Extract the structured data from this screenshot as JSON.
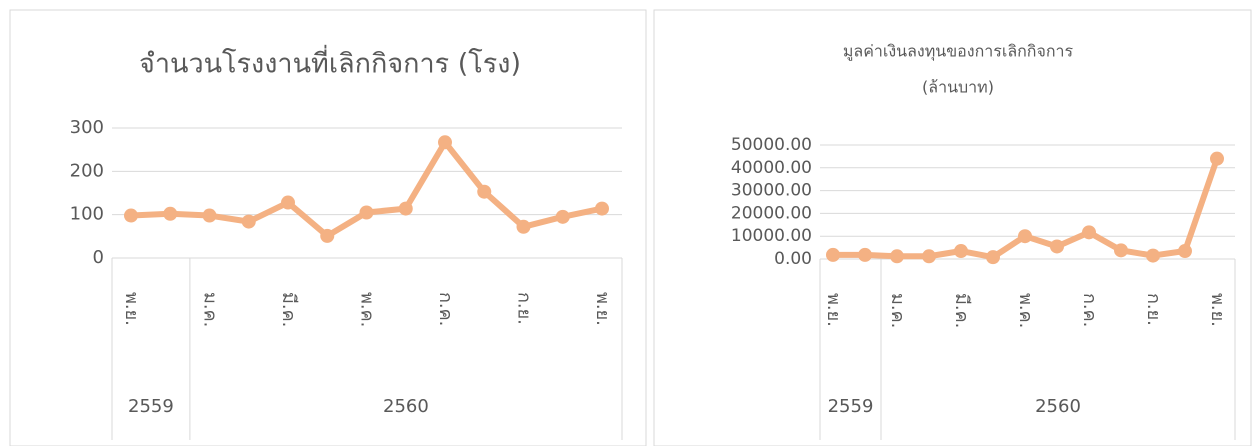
{
  "chart_data": [
    {
      "type": "line",
      "title": [
        "จำนวนโรงงานที่เลิกกิจการ (โรง)"
      ],
      "categories": [
        "พ.ย.",
        null,
        "ม.ค.",
        null,
        "มี.ค.",
        null,
        "พ.ค.",
        null,
        "ก.ค.",
        null,
        "ก.ย.",
        null,
        "พ.ย."
      ],
      "groups": [
        {
          "label": "2559",
          "count": 2
        },
        {
          "label": "2560",
          "count": 11
        }
      ],
      "series": [
        {
          "color": "#f4b183",
          "values": [
            98,
            102,
            98,
            84,
            128,
            51,
            105,
            114,
            267,
            153,
            72,
            95,
            114
          ]
        }
      ],
      "ylim": [
        0,
        300
      ],
      "yticks": [
        0,
        100,
        200,
        300
      ],
      "grid": true
    },
    {
      "type": "line",
      "title": [
        "มูลค่าเงินลงทุนของการเลิกกิจการ",
        "(ล้านบาท)"
      ],
      "categories": [
        "พ.ย.",
        null,
        "ม.ค.",
        null,
        "มี.ค.",
        null,
        "พ.ค.",
        null,
        "ก.ค.",
        null,
        "ก.ย.",
        null,
        "พ.ย."
      ],
      "groups": [
        {
          "label": "2559",
          "count": 2
        },
        {
          "label": "2560",
          "count": 11
        }
      ],
      "series": [
        {
          "color": "#f4b183",
          "values": [
            1800,
            1800,
            1200,
            1200,
            3500,
            800,
            10000,
            5500,
            11700,
            3800,
            1500,
            3500,
            44000
          ]
        }
      ],
      "ylim": [
        0,
        50000
      ],
      "yticks": [
        {
          "value": 0,
          "label": "0.00"
        },
        {
          "value": 10000,
          "label": "10000.00"
        },
        {
          "value": 20000,
          "label": "20000.00"
        },
        {
          "value": 30000,
          "label": "30000.00"
        },
        {
          "value": 40000,
          "label": "40000.00"
        },
        {
          "value": 50000,
          "label": "50000.00"
        }
      ],
      "grid": true
    }
  ]
}
